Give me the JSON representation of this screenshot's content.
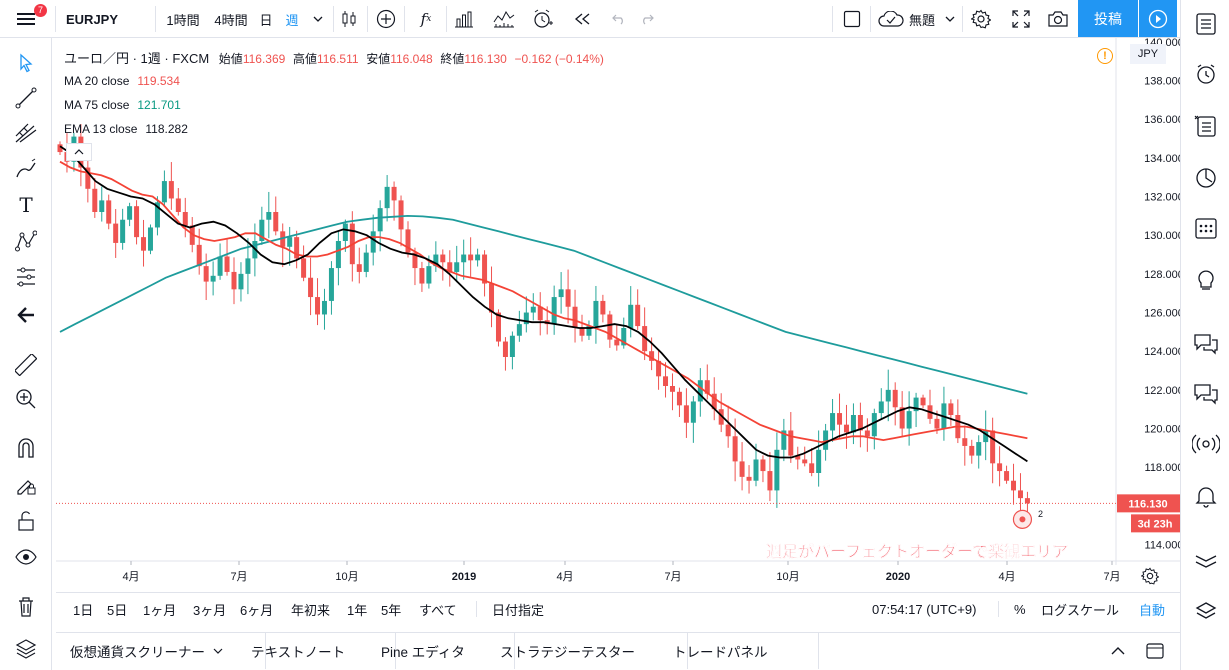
{
  "toolbar": {
    "symbol": "EURJPY",
    "intervals": [
      "1時間",
      "4時間",
      "日",
      "週"
    ],
    "active_interval": "週",
    "template_label": "無題",
    "post_label": "投稿",
    "menu_badge": "7"
  },
  "legend": {
    "title": "ユーロ／円 · 1週 · FXCM",
    "ohlc": [
      {
        "label": "始値",
        "value": "116.369"
      },
      {
        "label": "高値",
        "value": "116.511"
      },
      {
        "label": "安値",
        "value": "116.048"
      },
      {
        "label": "終値",
        "value": "116.130"
      }
    ],
    "change": "−0.162 (−0.14%)",
    "indicators": [
      {
        "label": "MA 20 close",
        "value": "119.534",
        "color": "#ef5350"
      },
      {
        "label": "MA 75 close",
        "value": "121.701",
        "color": "#089981"
      },
      {
        "label": "EMA 13 close",
        "value": "118.282",
        "color": "#131722"
      }
    ]
  },
  "price_axis": {
    "currency": "JPY",
    "labels": [
      "140.000",
      "138.000",
      "136.000",
      "134.000",
      "132.000",
      "130.000",
      "128.000",
      "126.000",
      "124.000",
      "122.000",
      "120.000",
      "118.000",
      "116.000",
      "114.000"
    ],
    "last_price": "116.130",
    "countdown": "3d 23h"
  },
  "time_axis": {
    "labels": [
      "4月",
      "7月",
      "10月",
      "2019",
      "4月",
      "7月",
      "10月",
      "2020",
      "4月",
      "7月"
    ]
  },
  "annotation": {
    "text": "週足がパーフェクトオーダーで楽観エリア",
    "alert_count": "2"
  },
  "ranges": {
    "buttons": [
      "1日",
      "5日",
      "1ヶ月",
      "3ヶ月",
      "6ヶ月",
      "年初来",
      "1年",
      "5年",
      "すべて"
    ],
    "goto": "日付指定",
    "clock": "07:54:17 (UTC+9)",
    "percent": "%",
    "log": "ログスケール",
    "auto": "自動"
  },
  "panels": [
    "仮想通貨スクリーナー",
    "テキストノート",
    "Pine エディタ",
    "ストラテジーテスター",
    "トレードパネル"
  ],
  "colors": {
    "up": "#26a69a",
    "down": "#ef5350",
    "accent": "#2196f3",
    "ma20": "#f44336",
    "ma75": "#1e9c9c",
    "ema13": "#000000"
  },
  "chart_data": {
    "type": "candlestick",
    "title": "ユーロ／円 · 1週 · FXCM",
    "x_labels": [
      "4月",
      "7月",
      "10月",
      "2019",
      "4月",
      "7月",
      "10月",
      "2020",
      "4月",
      "7月"
    ],
    "ylim": [
      113.2,
      140.2
    ],
    "yticks": [
      114,
      116,
      118,
      120,
      122,
      124,
      126,
      128,
      130,
      132,
      134,
      136,
      138,
      140
    ],
    "closes": [
      134.3,
      133.8,
      135.1,
      133.5,
      132.4,
      131.2,
      131.8,
      130.6,
      129.6,
      130.8,
      131.5,
      129.9,
      129.2,
      130.4,
      131.7,
      132.8,
      131.9,
      131.2,
      130.5,
      129.5,
      128.4,
      127.6,
      127.9,
      128.9,
      128.1,
      127.2,
      128.0,
      128.8,
      129.7,
      130.8,
      131.2,
      130.2,
      129.4,
      129.9,
      128.8,
      127.8,
      126.8,
      125.9,
      126.6,
      128.3,
      129.7,
      130.6,
      128.5,
      128.1,
      129.1,
      130.2,
      131.4,
      132.5,
      131.8,
      130.3,
      129.1,
      128.3,
      127.5,
      128.4,
      129.0,
      128.6,
      128.1,
      128.6,
      129.0,
      128.7,
      129.0,
      127.5,
      126.0,
      124.5,
      123.7,
      124.8,
      125.4,
      126.0,
      126.3,
      125.6,
      125.4,
      126.8,
      127.2,
      126.3,
      125.2,
      124.8,
      125.3,
      126.6,
      125.9,
      124.6,
      124.3,
      125.2,
      126.4,
      125.3,
      124.0,
      123.5,
      122.7,
      122.2,
      121.9,
      121.2,
      120.3,
      121.4,
      122.5,
      121.8,
      121.0,
      120.2,
      119.6,
      118.3,
      117.5,
      117.3,
      118.4,
      117.8,
      116.8,
      118.9,
      119.9,
      118.6,
      118.4,
      118.2,
      117.7,
      118.9,
      119.9,
      120.8,
      120.2,
      119.8,
      120.7,
      119.9,
      119.6,
      120.8,
      121.4,
      122.0,
      121.1,
      120.0,
      120.9,
      121.6,
      121.2,
      120.5,
      120.0,
      121.3,
      120.7,
      119.5,
      119.1,
      118.6,
      119.3,
      119.9,
      118.2,
      117.8,
      117.3,
      116.8,
      116.4,
      116.13
    ],
    "series": [
      {
        "name": "MA 20 close",
        "last": 119.534,
        "values": [
          133.8,
          133.5,
          133.3,
          133.2,
          133.1,
          132.9,
          132.6,
          132.3,
          132.1,
          132.0,
          131.6,
          131.0,
          130.4,
          130.0,
          129.8,
          129.7,
          129.8,
          129.9,
          130.1,
          130.1,
          129.8,
          129.5,
          129.3,
          129.0,
          128.9,
          128.9,
          129.0,
          129.2,
          129.4,
          129.7,
          129.9,
          129.9,
          129.8,
          129.6,
          129.3,
          129.0,
          128.6,
          128.3,
          128.1,
          127.9,
          127.8,
          127.7,
          127.5,
          127.3,
          127.1,
          126.8,
          126.5,
          126.2,
          125.9,
          125.7,
          125.6,
          125.4,
          125.2,
          125.0,
          124.7,
          124.4,
          124.1,
          123.8,
          123.5,
          123.2,
          122.9,
          122.6,
          122.2,
          121.8,
          121.4,
          121.1,
          120.8,
          120.5,
          120.2,
          120.0,
          119.8,
          119.6,
          119.5,
          119.4,
          119.3,
          119.4,
          119.5,
          119.6,
          119.6,
          119.5,
          119.4,
          119.5,
          119.6,
          119.7,
          119.8,
          119.9,
          120.0,
          120.1,
          120.1,
          120.0,
          119.9,
          119.8,
          119.7,
          119.6,
          119.5
        ]
      },
      {
        "name": "MA 75 close",
        "last": 121.701,
        "values": [
          125.0,
          125.4,
          125.8,
          126.2,
          126.6,
          127.0,
          127.4,
          127.8,
          128.1,
          128.4,
          128.7,
          129.0,
          129.3,
          129.5,
          129.7,
          129.9,
          130.1,
          130.3,
          130.5,
          130.7,
          130.8,
          130.9,
          130.95,
          131.0,
          130.97,
          130.9,
          130.8,
          130.6,
          130.4,
          130.2,
          130.0,
          129.8,
          129.6,
          129.4,
          129.2,
          128.9,
          128.6,
          128.3,
          128.0,
          127.7,
          127.4,
          127.1,
          126.8,
          126.5,
          126.2,
          125.9,
          125.6,
          125.3,
          125.0,
          124.8,
          124.6,
          124.4,
          124.2,
          124.0,
          123.8,
          123.6,
          123.4,
          123.2,
          123.0,
          122.8,
          122.6,
          122.4,
          122.2,
          122.0,
          121.8
        ]
      },
      {
        "name": "EMA 13 close",
        "last": 118.282,
        "values": [
          134.6,
          134.2,
          133.5,
          132.8,
          132.4,
          132.2,
          132.0,
          131.9,
          131.6,
          131.1,
          130.6,
          130.4,
          130.6,
          130.7,
          130.5,
          130.1,
          129.6,
          129.0,
          128.6,
          128.5,
          128.7,
          129.0,
          129.6,
          130.1,
          130.3,
          130.2,
          130.0,
          129.6,
          129.3,
          129.1,
          129.0,
          128.8,
          128.5,
          128.0,
          127.4,
          126.8,
          126.3,
          125.9,
          125.7,
          125.6,
          125.5,
          125.5,
          125.4,
          125.3,
          125.2,
          125.2,
          125.3,
          125.4,
          125.3,
          125.0,
          124.5,
          123.9,
          123.2,
          122.5,
          121.9,
          121.3,
          120.7,
          120.1,
          119.5,
          118.9,
          118.6,
          118.5,
          118.5,
          118.7,
          119.0,
          119.3,
          119.6,
          119.8,
          120.0,
          120.3,
          120.6,
          120.9,
          121.1,
          121.0,
          120.8,
          120.6,
          120.4,
          120.2,
          119.9,
          119.5,
          119.1,
          118.7,
          118.3
        ]
      }
    ]
  }
}
